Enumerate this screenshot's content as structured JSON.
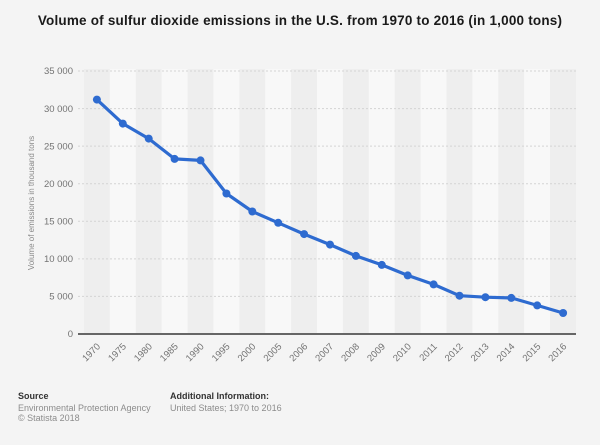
{
  "chart_data": {
    "type": "line",
    "title": "Volume of sulfur dioxide emissions in the U.S. from 1970 to 2016 (in 1,000 tons)",
    "xlabel": "",
    "ylabel": "Volume of emissions in thousand tons",
    "categories": [
      "1970",
      "1975",
      "1980",
      "1985",
      "1990",
      "1995",
      "2000",
      "2005",
      "2006",
      "2007",
      "2008",
      "2009",
      "2010",
      "2011",
      "2012",
      "2013",
      "2014",
      "2015",
      "2016"
    ],
    "values": [
      31200,
      28000,
      26000,
      23300,
      23100,
      18700,
      16300,
      14800,
      13300,
      11900,
      10400,
      9200,
      7800,
      6600,
      5100,
      4900,
      4800,
      3800,
      2800
    ],
    "ylim": [
      0,
      35000
    ],
    "ytick_step": 5000,
    "grid": "horizontal-dashed",
    "legend": "none",
    "marker": "circle"
  },
  "colors": {
    "line": "#2e6bd0",
    "page_bg": "#f4f4f4",
    "band_dark": "#eeeeee",
    "band_light": "#f8f8f8",
    "gridline": "#d4d4d4",
    "axis": "#666666",
    "tick_text": "#737373",
    "axis_title_text": "#8a8a8a",
    "title_text": "#1a1a1a",
    "footer_gray": "#8c8c8c"
  },
  "footer": {
    "source_label": "Source",
    "source_value": "Environmental Protection Agency",
    "copyright": "© Statista 2018",
    "additional_label": "Additional Information:",
    "additional_value": "United States; 1970 to 2016"
  }
}
